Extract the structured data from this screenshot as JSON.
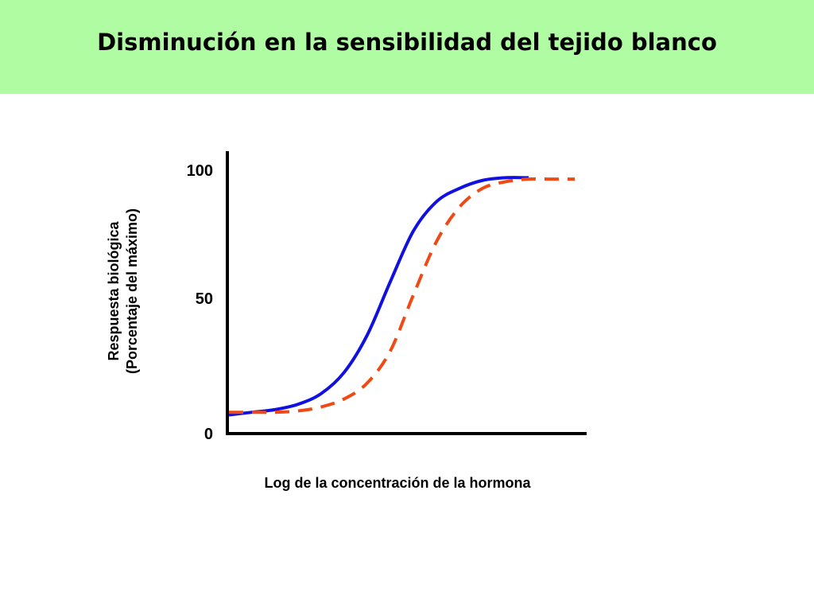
{
  "slide": {
    "title": "Disminución en la sensibilidad del tejido blanco",
    "header_color": "#b0fca3"
  },
  "chart_data": {
    "type": "line",
    "title": "",
    "xlabel": "Log de la concentración de la hormona",
    "ylabel": [
      "Respuesta biológica",
      "(Porcentaje del máximo)"
    ],
    "ylim": [
      0,
      100
    ],
    "yticks": [
      "0",
      "50",
      "100"
    ],
    "grid": false,
    "series": [
      {
        "style": "solid",
        "color": "#1010e0",
        "y": [
          7,
          8,
          9,
          11,
          15,
          23,
          37,
          57,
          76,
          87,
          92,
          95,
          96,
          96
        ]
      },
      {
        "style": "dashed",
        "color": "#f04a14",
        "y": [
          8,
          8,
          8,
          8.5,
          10,
          13,
          19,
          31,
          52,
          72,
          85,
          92,
          94.5,
          95.5,
          95.5,
          95.5
        ]
      }
    ]
  }
}
